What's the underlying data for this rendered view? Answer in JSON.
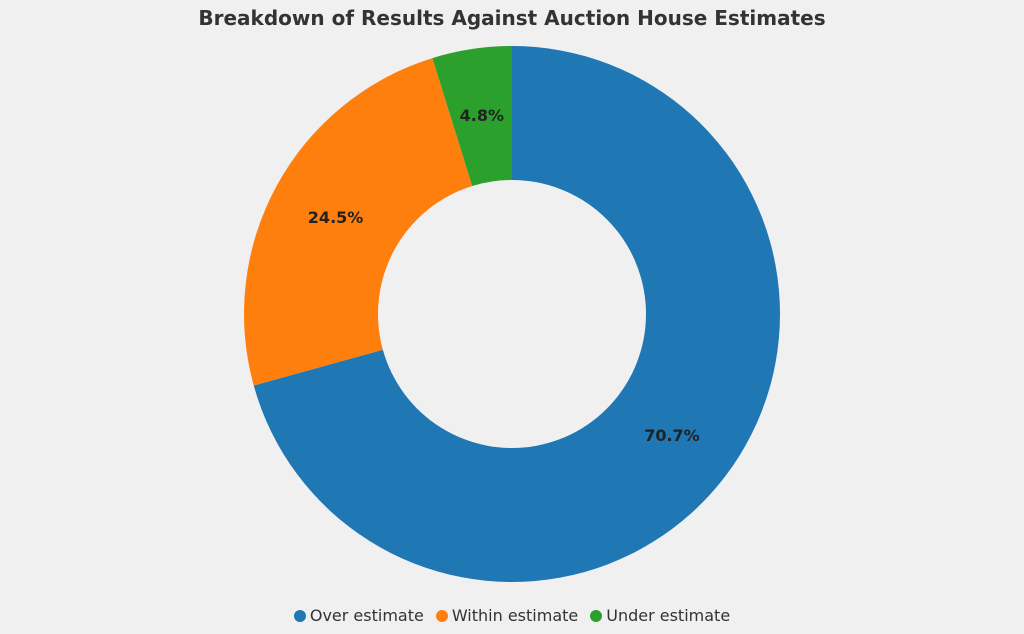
{
  "chart_data": {
    "type": "pie",
    "title": "Breakdown of Results Against Auction House Estimates",
    "donut": true,
    "categories": [
      "Over estimate",
      "Within estimate",
      "Under estimate"
    ],
    "values": [
      70.7,
      24.5,
      4.8
    ],
    "labels": [
      "70.7%",
      "24.5%",
      "4.8%"
    ],
    "colors": [
      "#1f77b4",
      "#ff7f0e",
      "#2ca02c"
    ],
    "legend_position": "bottom"
  }
}
